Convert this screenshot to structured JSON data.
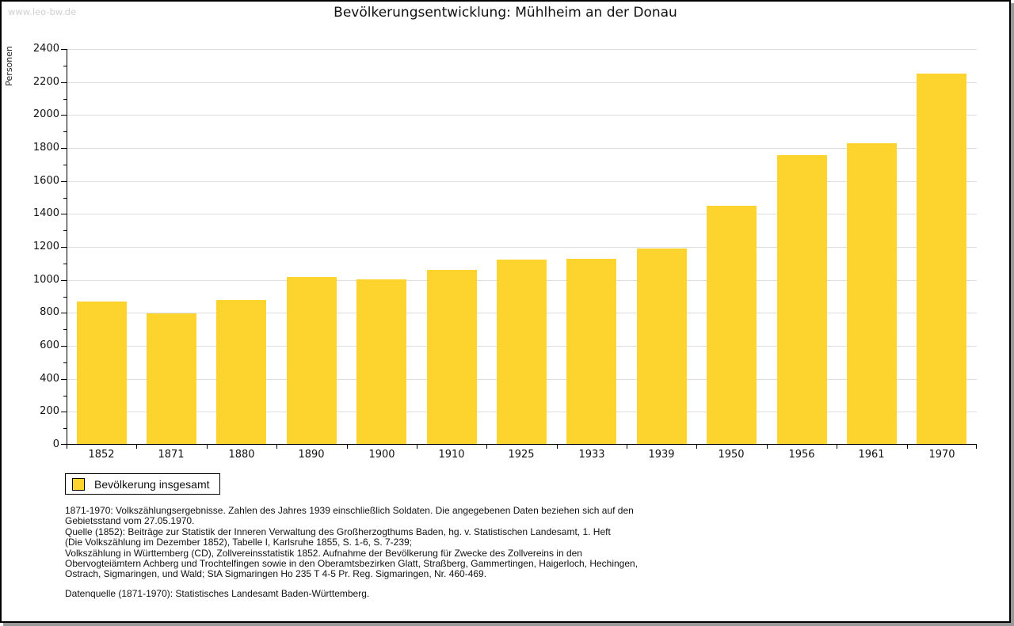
{
  "watermark": "www.leo-bw.de",
  "title": "Bevölkerungsentwicklung: Mühlheim an der Donau",
  "legend": {
    "label": "Bevölkerung insgesamt"
  },
  "chart_data": {
    "type": "bar",
    "title": "Bevölkerungsentwicklung: Mühlheim an der Donau",
    "ylabel": "Personen",
    "xlabel": "",
    "series_name": "Bevölkerung insgesamt",
    "categories": [
      "1852",
      "1871",
      "1880",
      "1890",
      "1900",
      "1910",
      "1925",
      "1933",
      "1939",
      "1950",
      "1956",
      "1961",
      "1970"
    ],
    "values": [
      870,
      798,
      878,
      1016,
      1004,
      1059,
      1121,
      1128,
      1192,
      1451,
      1756,
      1828,
      2249
    ],
    "ylim": [
      0,
      2400
    ],
    "ytick_step": 200,
    "yminor_step": 100,
    "grid": true,
    "legend_position": "bottom-left",
    "bar_color": "#FCD42D"
  },
  "footnotes": {
    "lines": [
      "1871-1970: Volkszählungsergebnisse. Zahlen des Jahres 1939 einschließlich Soldaten. Die angegebenen Daten beziehen sich auf den",
      "Gebietsstand vom 27.05.1970.",
      "Quelle (1852): Beiträge zur Statistik der Inneren Verwaltung des Großherzogthums Baden, hg. v. Statistischen Landesamt, 1. Heft",
      "(Die Volkszählung im Dezember 1852), Tabelle I, Karlsruhe 1855, S. 1-6, S. 7-239;",
      "Volkszählung in Württemberg (CD), Zollvereinsstatistik 1852. Aufnahme der Bevölkerung für Zwecke des Zollvereins in den",
      "Obervogteiämtern Achberg und Trochtelfingen sowie in den Oberamtsbezirken Glatt, Straßberg, Gammertingen, Haigerloch, Hechingen,",
      "Ostrach, Sigmaringen, und Wald; StA Sigmaringen Ho 235 T 4-5 Pr. Reg. Sigmaringen, Nr. 460-469."
    ],
    "datasource": "Datenquelle (1871-1970): Statistisches Landesamt Baden-Württemberg."
  },
  "colors": {
    "bar": "#FCD42D",
    "grid": "#DDDDDD",
    "axis": "#000000",
    "watermark": "#D0D0D0",
    "frame_shadow": "#999999",
    "background": "#FFFFFF"
  }
}
